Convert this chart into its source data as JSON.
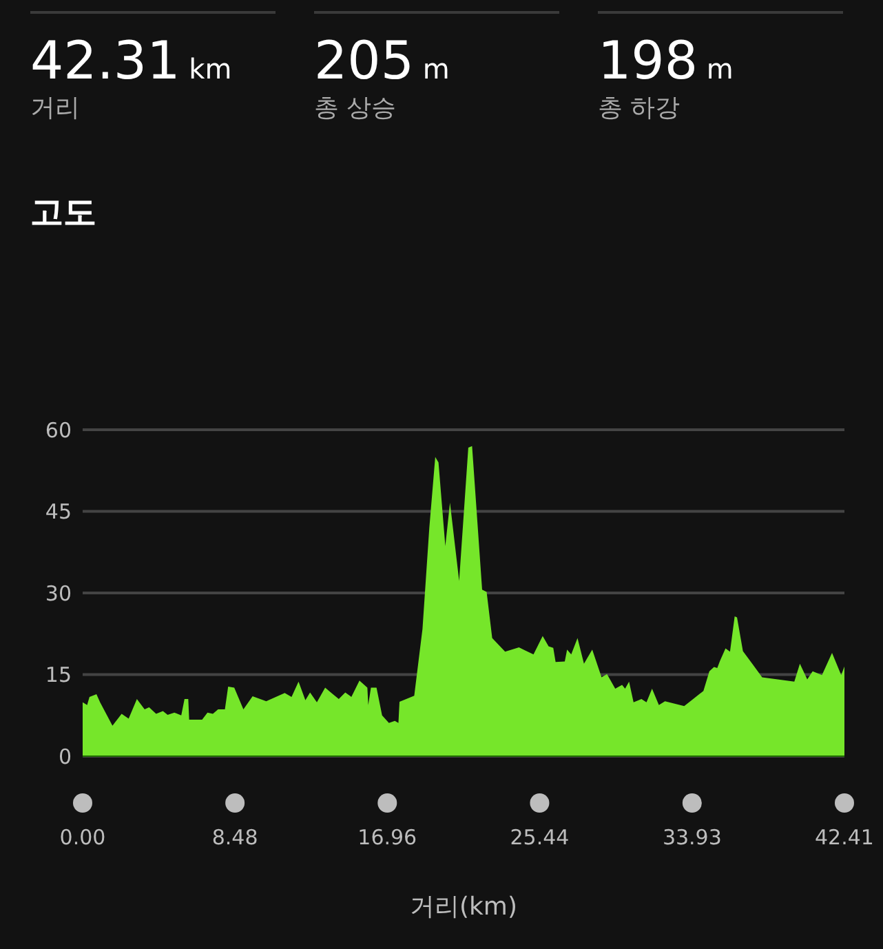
{
  "chart_data": {
    "type": "area",
    "title": "고도",
    "xlabel": "거리(km)",
    "annotations": [
      "42.31 km",
      "거리",
      "205 m",
      "총 상승",
      "198 m",
      "총 하강"
    ],
    "x": [
      0,
      0.25,
      0.38,
      0.77,
      0.97,
      1.66,
      2.17,
      2.56,
      3.02,
      3.45,
      3.7,
      4.09,
      4.47,
      4.73,
      5.11,
      5.49,
      5.67,
      5.88,
      5.93,
      6.65,
      6.95,
      7.25,
      7.54,
      7.92,
      8.1,
      8.44,
      8.95,
      9.46,
      10.22,
      11.25,
      11.63,
      12.02,
      12.4,
      12.66,
      13.04,
      13.5,
      13.85,
      14.26,
      14.62,
      14.96,
      15.41,
      15.85,
      15.9,
      16.05,
      16.36,
      16.67,
      17.05,
      17.38,
      17.58,
      17.64,
      18.46,
      18.92,
      19.3,
      19.63,
      19.81,
      20.19,
      20.45,
      20.96,
      21.47,
      21.68,
      22.24,
      22.49,
      22.8,
      23.52,
      24.29,
      25.1,
      25.61,
      25.94,
      26.2,
      26.33,
      26.84,
      26.97,
      27.2,
      27.55,
      27.91,
      28.37,
      28.89,
      29.19,
      29.65,
      30.03,
      30.2,
      30.42,
      30.67,
      31.11,
      31.39,
      31.7,
      32.08,
      32.42,
      33.49,
      34.56,
      34.89,
      35.15,
      35.33,
      35.48,
      35.79,
      36.04,
      36.3,
      36.43,
      36.76,
      37.32,
      37.83,
      39.62,
      39.93,
      40.34,
      40.64,
      41.16,
      41.72,
      42.23,
      42.41
    ],
    "series": [
      {
        "color": "#76e62a",
        "values": [
          9.9,
          9.4,
          10.9,
          11.4,
          9.9,
          5.6,
          7.8,
          6.9,
          10.5,
          8.6,
          9.0,
          7.8,
          8.3,
          7.6,
          8.0,
          7.5,
          10.5,
          10.5,
          6.7,
          6.7,
          8.0,
          7.8,
          8.6,
          8.6,
          12.8,
          12.6,
          8.6,
          11.0,
          10.1,
          11.6,
          10.9,
          13.7,
          10.3,
          11.7,
          9.9,
          12.6,
          11.6,
          10.5,
          11.7,
          10.9,
          13.9,
          12.6,
          9.4,
          12.6,
          12.6,
          7.5,
          6.1,
          6.5,
          6.1,
          10.0,
          11.1,
          23.4,
          42.0,
          55.0,
          54.0,
          38.6,
          46.6,
          32.2,
          56.7,
          57.0,
          30.6,
          30.2,
          21.7,
          19.2,
          20.0,
          18.7,
          22.1,
          20.2,
          19.9,
          17.3,
          17.4,
          19.6,
          18.7,
          21.7,
          17.0,
          19.6,
          14.5,
          15.1,
          12.4,
          13.1,
          12.4,
          13.7,
          9.9,
          10.5,
          9.9,
          12.4,
          9.4,
          10.1,
          9.2,
          12.0,
          15.6,
          16.4,
          16.2,
          17.5,
          19.8,
          19.2,
          25.7,
          25.5,
          19.3,
          16.8,
          14.5,
          13.7,
          17.0,
          14.1,
          15.6,
          14.9,
          19.0,
          14.9,
          16.5
        ]
      }
    ],
    "xlim": [
      0,
      42.41
    ],
    "xticks": [
      {
        "value": 0,
        "label": "0.00"
      },
      8.48,
      16.96,
      25.44,
      33.93,
      42.41
    ],
    "ylim": [
      0,
      60
    ],
    "yticks": [
      0,
      15,
      30,
      45,
      60
    ],
    "grid": "y",
    "legend": false
  }
}
